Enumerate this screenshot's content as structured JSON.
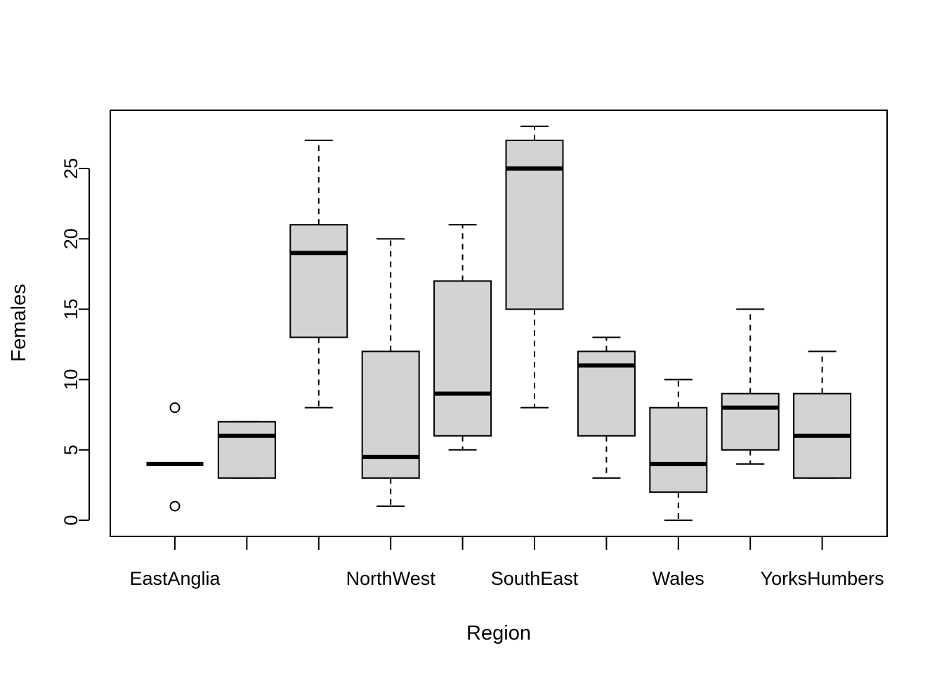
{
  "chart_data": {
    "type": "boxplot",
    "title": "",
    "xlabel": "Region",
    "ylabel": "Females",
    "ylim": [
      -1,
      29
    ],
    "y_ticks": [
      0,
      5,
      10,
      15,
      20,
      25
    ],
    "y_tick_labels": [
      "0",
      "5",
      "10",
      "15",
      "20",
      "25"
    ],
    "x_tick_labels_shown": [
      "EastAnglia",
      "",
      "",
      "NorthWest",
      "",
      "SouthEast",
      "",
      "Wales",
      "",
      "YorksHumbers"
    ],
    "boxes": [
      {
        "label": "EastAnglia",
        "whisker_low": 4,
        "q1": 4,
        "median": 4,
        "q3": 4,
        "whisker_high": 4,
        "outliers": [
          8,
          1
        ]
      },
      {
        "label": "",
        "whisker_low": 3,
        "q1": 3,
        "median": 6,
        "q3": 7,
        "whisker_high": 7,
        "outliers": []
      },
      {
        "label": "",
        "whisker_low": 8,
        "q1": 13,
        "median": 19,
        "q3": 21,
        "whisker_high": 27,
        "outliers": []
      },
      {
        "label": "NorthWest",
        "whisker_low": 1,
        "q1": 3,
        "median": 4.5,
        "q3": 12,
        "whisker_high": 20,
        "outliers": []
      },
      {
        "label": "",
        "whisker_low": 5,
        "q1": 6,
        "median": 9,
        "q3": 17,
        "whisker_high": 21,
        "outliers": []
      },
      {
        "label": "SouthEast",
        "whisker_low": 8,
        "q1": 15,
        "median": 25,
        "q3": 27,
        "whisker_high": 28,
        "outliers": []
      },
      {
        "label": "",
        "whisker_low": 3,
        "q1": 6,
        "median": 11,
        "q3": 12,
        "whisker_high": 13,
        "outliers": []
      },
      {
        "label": "Wales",
        "whisker_low": 0,
        "q1": 2,
        "median": 4,
        "q3": 8,
        "whisker_high": 10,
        "outliers": []
      },
      {
        "label": "",
        "whisker_low": 4,
        "q1": 5,
        "median": 8,
        "q3": 9,
        "whisker_high": 15,
        "outliers": []
      },
      {
        "label": "YorksHumbers",
        "whisker_low": 3,
        "q1": 3,
        "median": 6,
        "q3": 9,
        "whisker_high": 12,
        "outliers": []
      }
    ],
    "box_fill": "#d3d3d3",
    "line_color": "#000000"
  }
}
